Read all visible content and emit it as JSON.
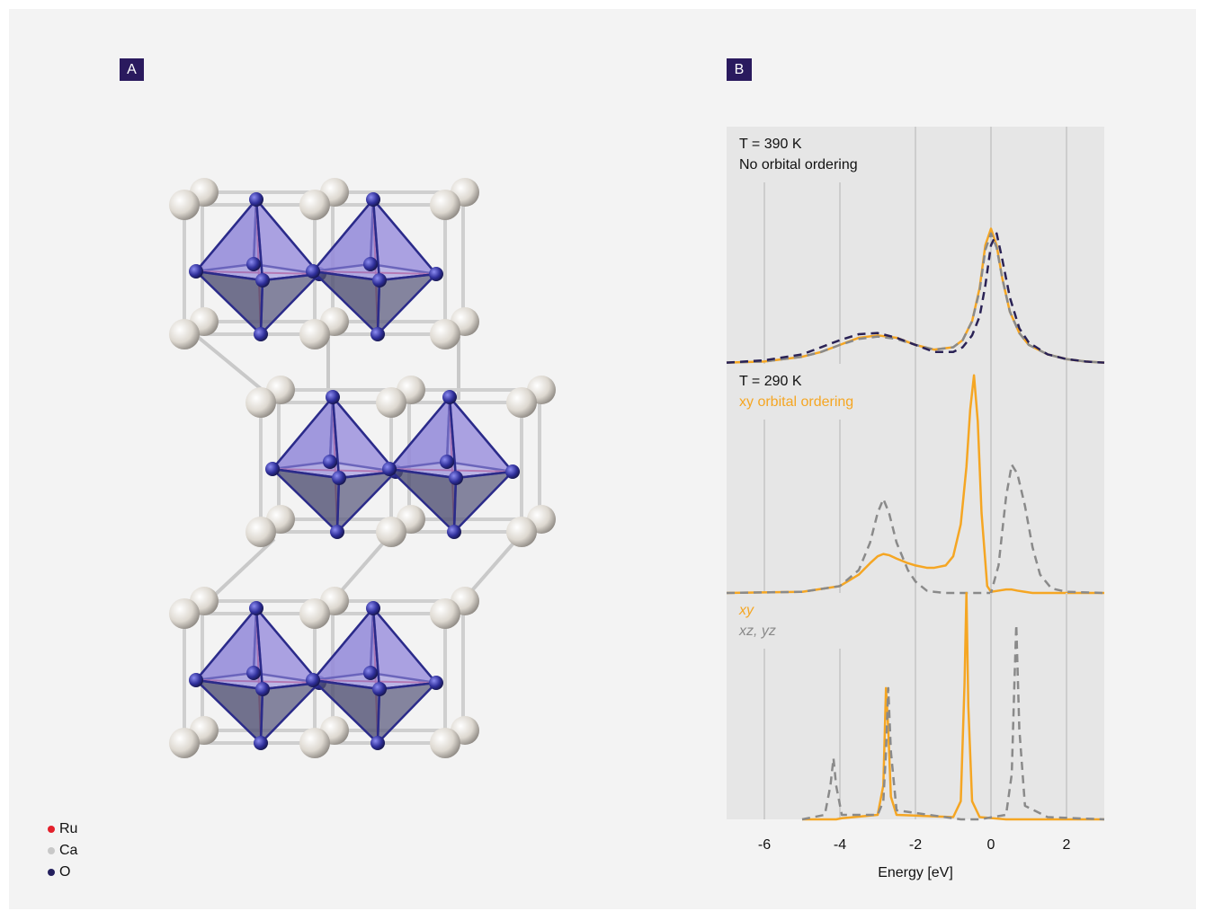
{
  "panel_labels": [
    "A",
    "B"
  ],
  "structure_legend": [
    {
      "name": "Ru",
      "color": "#e3202b"
    },
    {
      "name": "Ca",
      "color": "#c8c8c8"
    },
    {
      "name": "O",
      "color": "#24205e"
    }
  ],
  "chart_data": [
    {
      "type": "line",
      "annotations": [
        {
          "text": "T = 390 K",
          "color": "#111111"
        },
        {
          "text": "No orbital ordering",
          "color": "#111111"
        }
      ],
      "x": [
        -7,
        -6,
        -5,
        -4.5,
        -4,
        -3.5,
        -3,
        -2.5,
        -2,
        -1.5,
        -1,
        -0.75,
        -0.5,
        -0.3,
        -0.15,
        0,
        0.15,
        0.3,
        0.5,
        0.75,
        1,
        1.5,
        2,
        2.5,
        3
      ],
      "series": [
        {
          "color": "#f5a623",
          "dashed": false,
          "values": [
            0.005,
            0.01,
            0.03,
            0.05,
            0.08,
            0.11,
            0.12,
            0.11,
            0.08,
            0.06,
            0.07,
            0.1,
            0.18,
            0.32,
            0.5,
            0.57,
            0.5,
            0.36,
            0.22,
            0.13,
            0.08,
            0.04,
            0.02,
            0.01,
            0.005
          ]
        },
        {
          "color": "#8a8a8a",
          "dashed": true,
          "values": [
            0.005,
            0.01,
            0.03,
            0.05,
            0.08,
            0.105,
            0.115,
            0.105,
            0.08,
            0.06,
            0.07,
            0.1,
            0.18,
            0.31,
            0.48,
            0.55,
            0.49,
            0.36,
            0.22,
            0.13,
            0.08,
            0.04,
            0.02,
            0.01,
            0.005
          ]
        },
        {
          "color": "#2a2255",
          "dashed": true,
          "values": [
            0.005,
            0.015,
            0.04,
            0.07,
            0.1,
            0.125,
            0.13,
            0.11,
            0.08,
            0.05,
            0.05,
            0.07,
            0.12,
            0.2,
            0.33,
            0.5,
            0.55,
            0.44,
            0.28,
            0.15,
            0.09,
            0.04,
            0.02,
            0.01,
            0.005
          ]
        }
      ],
      "xlim": [
        -7,
        3
      ],
      "ylim": [
        0,
        1
      ],
      "xticks": [
        -6,
        -4,
        -2,
        0,
        2
      ],
      "tick_labels": false,
      "grid": true
    },
    {
      "type": "line",
      "annotations": [
        {
          "text": "T = 290 K",
          "color": "#111111"
        },
        {
          "text": "xy orbital ordering",
          "color": "#f5a623"
        }
      ],
      "x": [
        -7,
        -5,
        -4,
        -3.5,
        -3.2,
        -3,
        -2.85,
        -2.7,
        -2.5,
        -2.2,
        -2,
        -1.7,
        -1.5,
        -1.2,
        -1,
        -0.8,
        -0.65,
        -0.55,
        -0.45,
        -0.35,
        -0.25,
        -0.1,
        0,
        0.2,
        0.4,
        0.55,
        0.7,
        0.9,
        1.1,
        1.3,
        1.6,
        2,
        3
      ],
      "series": [
        {
          "color": "#f5a623",
          "dashed": false,
          "values": [
            0,
            0.005,
            0.03,
            0.08,
            0.13,
            0.16,
            0.17,
            0.165,
            0.15,
            0.13,
            0.12,
            0.11,
            0.11,
            0.12,
            0.16,
            0.3,
            0.55,
            0.8,
            0.95,
            0.75,
            0.35,
            0.03,
            0.005,
            0.01,
            0.015,
            0.015,
            0.01,
            0.005,
            0,
            0,
            0,
            0,
            0
          ]
        },
        {
          "color": "#8a8a8a",
          "dashed": true,
          "values": [
            0,
            0.005,
            0.03,
            0.1,
            0.22,
            0.35,
            0.41,
            0.35,
            0.22,
            0.1,
            0.05,
            0.01,
            0.005,
            0,
            0,
            0,
            0,
            0,
            0,
            0,
            0,
            0,
            0,
            0.12,
            0.42,
            0.56,
            0.52,
            0.38,
            0.2,
            0.08,
            0.02,
            0.005,
            0
          ]
        }
      ],
      "xlim": [
        -7,
        3
      ],
      "ylim": [
        0,
        1
      ],
      "xticks": [
        -6,
        -4,
        -2,
        0,
        2
      ],
      "tick_labels": false,
      "grid": true
    },
    {
      "type": "line",
      "annotations": [],
      "x": [
        -5,
        -4.4,
        -4.25,
        -4.17,
        -4.1,
        -3.95,
        -3,
        -2.85,
        -2.78,
        -2.72,
        -2.65,
        -2.5,
        -1,
        -0.8,
        -0.7,
        -0.65,
        -0.6,
        -0.5,
        -0.3,
        0.4,
        0.55,
        0.62,
        0.67,
        0.75,
        0.9,
        1.5,
        3
      ],
      "series": [
        {
          "name": "xy",
          "color": "#f5a623",
          "dashed": false,
          "values": [
            0,
            0,
            0,
            0,
            0,
            0.005,
            0.02,
            0.15,
            0.58,
            0.4,
            0.1,
            0.02,
            0.01,
            0.08,
            0.6,
            1.0,
            0.5,
            0.08,
            0.01,
            0,
            0,
            0,
            0,
            0,
            0,
            0,
            0
          ]
        },
        {
          "name": "xz, yz",
          "color": "#8a8a8a",
          "dashed": true,
          "values": [
            0,
            0.02,
            0.15,
            0.27,
            0.15,
            0.02,
            0.02,
            0.08,
            0.3,
            0.58,
            0.3,
            0.04,
            0.005,
            0,
            0,
            0,
            0,
            0,
            0,
            0.02,
            0.2,
            0.6,
            0.86,
            0.4,
            0.06,
            0.01,
            0
          ]
        }
      ],
      "xlim": [
        -7,
        3
      ],
      "ylim": [
        0,
        1
      ],
      "xticks": [
        -6,
        -4,
        -2,
        0,
        2
      ],
      "tick_labels": true,
      "xlabel": "Energy [eV]",
      "grid": true
    }
  ]
}
